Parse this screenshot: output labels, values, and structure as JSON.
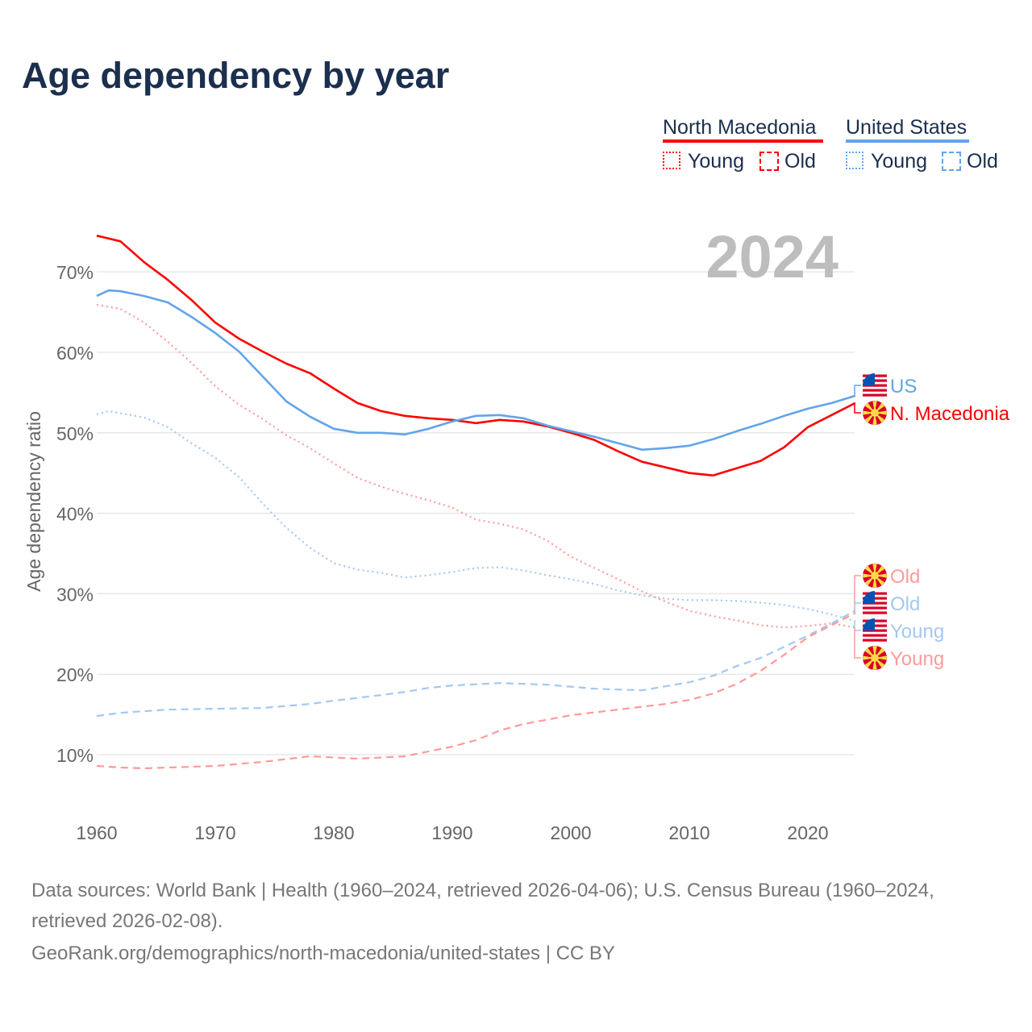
{
  "title": "Age dependency by year",
  "legend": {
    "groups": [
      {
        "name": "North Macedonia",
        "color": "#ff0000",
        "young": "Young",
        "old": "Old"
      },
      {
        "name": "United States",
        "color": "#62a4ea",
        "young": "Young",
        "old": "Old"
      }
    ]
  },
  "year_watermark": "2024",
  "end_labels": {
    "us": "US",
    "mk": "N. Macedonia",
    "mk_old": "Old",
    "us_old": "Old",
    "us_young": "Young",
    "mk_young": "Young"
  },
  "footer": {
    "line1": "Data sources: World Bank | Health (1960–2024, retrieved 2026-04-06); U.S. Census Bureau (1960–2024, retrieved 2026-02-08).",
    "line2": "GeoRank.org/demographics/north-macedonia/united-states | CC BY"
  },
  "chart_data": {
    "type": "line",
    "title": "Age dependency by year",
    "xlabel": "",
    "ylabel": "Age dependency ratio",
    "xlim": [
      1960,
      2024
    ],
    "ylim": [
      0,
      75
    ],
    "xticks": [
      1960,
      1970,
      1980,
      1990,
      2000,
      2010,
      2020
    ],
    "xtick_labels": [
      "1960",
      "1970",
      "1980",
      "1990",
      "2000",
      "2010",
      "2020"
    ],
    "yticks": [
      10,
      20,
      30,
      40,
      50,
      60,
      70
    ],
    "ytick_labels": [
      "10%",
      "20%",
      "30%",
      "40%",
      "50%",
      "60%",
      "70%"
    ],
    "grid": true,
    "series": [
      {
        "name": "North Macedonia",
        "key": "mk",
        "color": "#ff0000",
        "style": "solid",
        "x": [
          1960,
          1962,
          1964,
          1966,
          1968,
          1970,
          1972,
          1974,
          1976,
          1978,
          1980,
          1982,
          1984,
          1986,
          1988,
          1990,
          1992,
          1994,
          1996,
          1998,
          2000,
          2002,
          2004,
          2006,
          2008,
          2010,
          2012,
          2014,
          2016,
          2018,
          2020,
          2022,
          2024
        ],
        "y": [
          74.5,
          73.8,
          71.2,
          69.0,
          66.5,
          63.7,
          61.7,
          60.1,
          58.6,
          57.4,
          55.5,
          53.7,
          52.7,
          52.1,
          51.8,
          51.6,
          51.2,
          51.6,
          51.4,
          50.8,
          50.0,
          49.1,
          47.7,
          46.4,
          45.7,
          45.0,
          44.7,
          45.6,
          46.5,
          48.2,
          50.7,
          52.2,
          53.7
        ]
      },
      {
        "name": "United States",
        "key": "us",
        "color": "#62a4ea",
        "style": "solid",
        "x": [
          1960,
          1961,
          1962,
          1964,
          1966,
          1968,
          1970,
          1972,
          1974,
          1976,
          1978,
          1980,
          1982,
          1984,
          1986,
          1988,
          1990,
          1992,
          1994,
          1996,
          1998,
          2000,
          2002,
          2004,
          2006,
          2008,
          2010,
          2012,
          2014,
          2016,
          2018,
          2020,
          2022,
          2024
        ],
        "y": [
          67.0,
          67.7,
          67.6,
          67.0,
          66.2,
          64.4,
          62.4,
          60.1,
          57.0,
          53.9,
          52.0,
          50.5,
          50.0,
          50.0,
          49.8,
          50.5,
          51.4,
          52.1,
          52.2,
          51.8,
          50.9,
          50.2,
          49.5,
          48.7,
          47.9,
          48.1,
          48.4,
          49.2,
          50.2,
          51.1,
          52.1,
          53.0,
          53.7,
          54.6
        ]
      },
      {
        "name": "North Macedonia Young",
        "key": "mk_young",
        "color": "#ff9a9a",
        "style": "dotted",
        "x": [
          1960,
          1962,
          1964,
          1966,
          1968,
          1970,
          1972,
          1974,
          1976,
          1978,
          1980,
          1982,
          1984,
          1986,
          1988,
          1990,
          1992,
          1994,
          1996,
          1998,
          2000,
          2002,
          2004,
          2006,
          2008,
          2010,
          2012,
          2014,
          2016,
          2018,
          2020,
          2022,
          2024
        ],
        "y": [
          65.9,
          65.4,
          63.7,
          61.3,
          58.7,
          55.8,
          53.5,
          51.7,
          49.7,
          48.1,
          46.2,
          44.4,
          43.3,
          42.4,
          41.6,
          40.7,
          39.2,
          38.7,
          38.0,
          36.6,
          34.6,
          33.2,
          31.8,
          30.3,
          29.0,
          27.9,
          27.2,
          26.7,
          26.1,
          25.8,
          26.0,
          26.3,
          25.8
        ]
      },
      {
        "name": "United States Young",
        "key": "us_young",
        "color": "#a3c8f2",
        "style": "dotted",
        "x": [
          1960,
          1961,
          1964,
          1966,
          1968,
          1970,
          1972,
          1974,
          1976,
          1978,
          1980,
          1982,
          1984,
          1986,
          1988,
          1990,
          1992,
          1994,
          1996,
          1998,
          2000,
          2002,
          2004,
          2006,
          2008,
          2010,
          2012,
          2014,
          2016,
          2018,
          2020,
          2022,
          2024
        ],
        "y": [
          52.3,
          52.7,
          51.9,
          50.7,
          48.7,
          46.9,
          44.5,
          41.2,
          38.2,
          35.7,
          33.8,
          33.0,
          32.6,
          32.0,
          32.3,
          32.7,
          33.2,
          33.3,
          32.9,
          32.3,
          31.8,
          31.2,
          30.4,
          29.8,
          29.4,
          29.2,
          29.2,
          29.1,
          28.9,
          28.6,
          28.1,
          27.4,
          26.6
        ]
      },
      {
        "name": "United States Old",
        "key": "us_old",
        "color": "#a3c8f2",
        "style": "dashed",
        "x": [
          1960,
          1962,
          1964,
          1966,
          1970,
          1974,
          1978,
          1980,
          1984,
          1986,
          1988,
          1990,
          1994,
          1998,
          2002,
          2006,
          2008,
          2010,
          2012,
          2014,
          2016,
          2018,
          2020,
          2022,
          2024
        ],
        "y": [
          14.8,
          15.2,
          15.4,
          15.6,
          15.7,
          15.8,
          16.3,
          16.7,
          17.4,
          17.8,
          18.3,
          18.6,
          18.9,
          18.7,
          18.2,
          18.0,
          18.5,
          19.0,
          19.8,
          21.0,
          22.0,
          23.4,
          24.8,
          26.3,
          27.9
        ]
      },
      {
        "name": "North Macedonia Old",
        "key": "mk_old",
        "color": "#ff9a9a",
        "style": "dashed",
        "x": [
          1960,
          1962,
          1964,
          1966,
          1970,
          1974,
          1978,
          1982,
          1986,
          1990,
          1992,
          1994,
          1996,
          2000,
          2004,
          2008,
          2010,
          2012,
          2014,
          2016,
          2018,
          2020,
          2022,
          2024
        ],
        "y": [
          8.6,
          8.4,
          8.3,
          8.4,
          8.6,
          9.1,
          9.8,
          9.5,
          9.8,
          11.0,
          11.8,
          13.0,
          13.8,
          14.9,
          15.6,
          16.3,
          16.8,
          17.6,
          18.8,
          20.4,
          22.4,
          24.6,
          26.1,
          27.6
        ]
      }
    ]
  }
}
